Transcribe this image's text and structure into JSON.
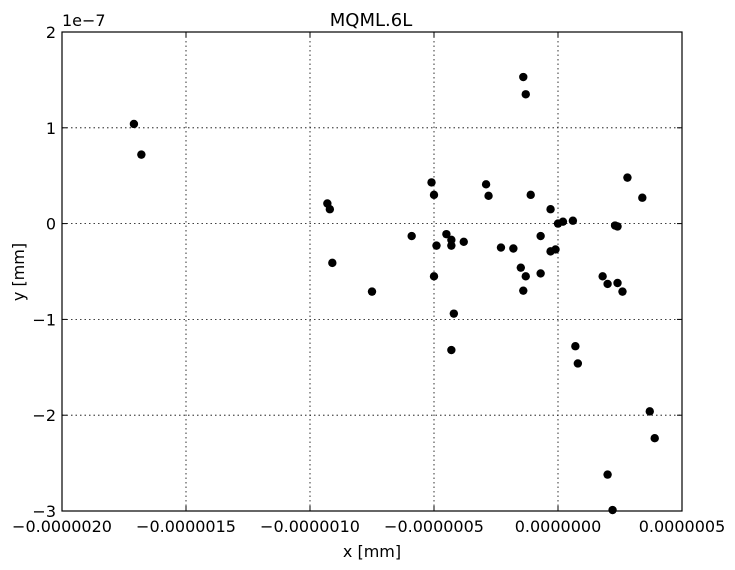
{
  "chart_data": {
    "type": "scatter",
    "title": "MQML.6L",
    "xlabel": "x [mm]",
    "ylabel": "y [mm]",
    "y_offset_label": "1e−7",
    "xlim": [
      -2e-06,
      5e-07
    ],
    "ylim": [
      -3e-07,
      2e-07
    ],
    "xticks": [
      -2e-06,
      -1.5e-06,
      -1e-06,
      -5e-07,
      0.0,
      5e-07
    ],
    "xtick_labels": [
      "−0.0000020",
      "−0.0000015",
      "−0.0000010",
      "−0.0000005",
      "0.0000000",
      "0.0000005"
    ],
    "yticks": [
      -3e-07,
      -2e-07,
      -1e-07,
      0.0,
      1e-07,
      2e-07
    ],
    "ytick_labels": [
      "−3",
      "−2",
      "−1",
      "0",
      "1",
      "2"
    ],
    "grid": true,
    "marker_color": "#000000",
    "points": [
      {
        "x": -1.71e-06,
        "y": 1.04e-07
      },
      {
        "x": -1.68e-06,
        "y": 7.2e-08
      },
      {
        "x": -9.3e-07,
        "y": 2.1e-08
      },
      {
        "x": -9.2e-07,
        "y": 1.5e-08
      },
      {
        "x": -9.1e-07,
        "y": -4.1e-08
      },
      {
        "x": -7.5e-07,
        "y": -7.1e-08
      },
      {
        "x": -5.9e-07,
        "y": -1.3e-08
      },
      {
        "x": -5.1e-07,
        "y": 4.3e-08
      },
      {
        "x": -5e-07,
        "y": 3e-08
      },
      {
        "x": -5e-07,
        "y": -5.5e-08
      },
      {
        "x": -4.9e-07,
        "y": -2.3e-08
      },
      {
        "x": -4.5e-07,
        "y": -1.1e-08
      },
      {
        "x": -4.3e-07,
        "y": -1.7e-08
      },
      {
        "x": -4.3e-07,
        "y": -2.3e-08
      },
      {
        "x": -4.2e-07,
        "y": -9.4e-08
      },
      {
        "x": -4.3e-07,
        "y": -1.32e-07
      },
      {
        "x": -3.8e-07,
        "y": -1.9e-08
      },
      {
        "x": -2.9e-07,
        "y": 4.1e-08
      },
      {
        "x": -2.8e-07,
        "y": 2.9e-08
      },
      {
        "x": -2.3e-07,
        "y": -2.5e-08
      },
      {
        "x": -1.8e-07,
        "y": -2.6e-08
      },
      {
        "x": -1.5e-07,
        "y": -4.6e-08
      },
      {
        "x": -1.4e-07,
        "y": 1.53e-07
      },
      {
        "x": -1.3e-07,
        "y": 1.35e-07
      },
      {
        "x": -1.3e-07,
        "y": -5.5e-08
      },
      {
        "x": -1.4e-07,
        "y": -7e-08
      },
      {
        "x": -1.1e-07,
        "y": 3e-08
      },
      {
        "x": -7e-08,
        "y": -1.3e-08
      },
      {
        "x": -7e-08,
        "y": -5.2e-08
      },
      {
        "x": -3e-08,
        "y": 1.5e-08
      },
      {
        "x": -3e-08,
        "y": -2.9e-08
      },
      {
        "x": -1e-08,
        "y": -2.7e-08
      },
      {
        "x": 0.0,
        "y": 0.0
      },
      {
        "x": 2e-08,
        "y": 2e-09
      },
      {
        "x": 6e-08,
        "y": 3e-09
      },
      {
        "x": 7e-08,
        "y": -1.28e-07
      },
      {
        "x": 8e-08,
        "y": -1.46e-07
      },
      {
        "x": 1.8e-07,
        "y": -5.5e-08
      },
      {
        "x": 2e-07,
        "y": -6.3e-08
      },
      {
        "x": 2e-07,
        "y": -2.62e-07
      },
      {
        "x": 2.2e-07,
        "y": -2.99e-07
      },
      {
        "x": 2.3e-07,
        "y": -2e-09
      },
      {
        "x": 2.4e-07,
        "y": -3e-09
      },
      {
        "x": 2.4e-07,
        "y": -6.2e-08
      },
      {
        "x": 2.6e-07,
        "y": -7.1e-08
      },
      {
        "x": 2.8e-07,
        "y": 4.8e-08
      },
      {
        "x": 3.4e-07,
        "y": 2.7e-08
      },
      {
        "x": 3.7e-07,
        "y": -1.96e-07
      },
      {
        "x": 3.9e-07,
        "y": -2.24e-07
      }
    ]
  }
}
